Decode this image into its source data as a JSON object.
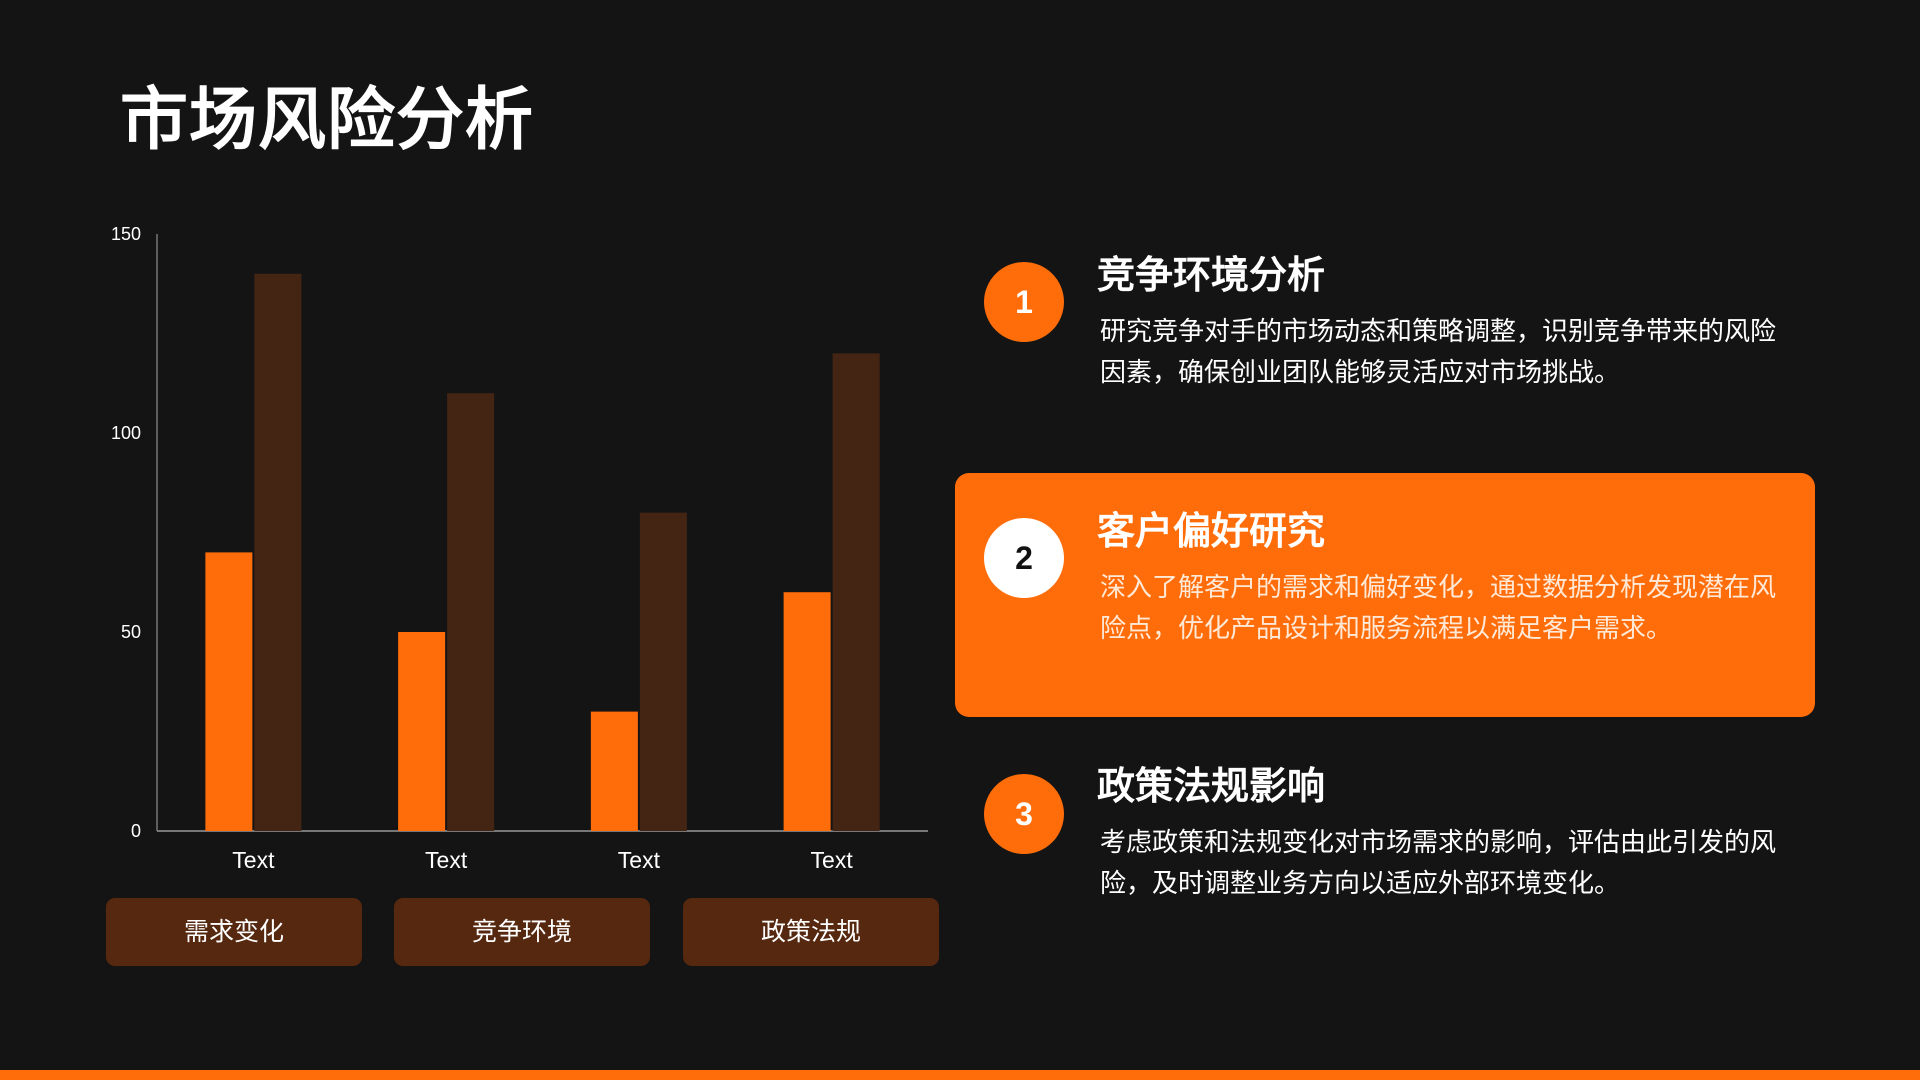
{
  "slide": {
    "title": "市场风险分析"
  },
  "chart_data": {
    "type": "bar",
    "categories": [
      "Text",
      "Text",
      "Text",
      "Text"
    ],
    "series": [
      {
        "values": [
          70,
          50,
          30,
          60
        ],
        "color": "#ff6d0a"
      },
      {
        "values": [
          140,
          110,
          80,
          120
        ],
        "color": "#442514"
      }
    ],
    "ylim": [
      0,
      150
    ],
    "yticks": [
      0,
      50,
      100,
      150
    ],
    "grid": false,
    "axis_color": "#777777",
    "tick_label_color": "#ffffff"
  },
  "tags": [
    "需求变化",
    "竞争环境",
    "政策法规"
  ],
  "points": [
    {
      "number": "1",
      "title": "竞争环境分析",
      "desc": "研究竞争对手的市场动态和策略调整，识别竞争带来的风险因素，确保创业团队能够灵活应对市场挑战。"
    },
    {
      "number": "2",
      "title": "客户偏好研究",
      "desc": "深入了解客户的需求和偏好变化，通过数据分析发现潜在风险点，优化产品设计和服务流程以满足客户需求。"
    },
    {
      "number": "3",
      "title": "政策法规影响",
      "desc": "考虑政策和法规变化对市场需求的影响，评估由此引发的风险，及时调整业务方向以适应外部环境变化。"
    }
  ],
  "colors": {
    "background": "#141414",
    "accent": "#ff6d0a",
    "tag_background": "#55280f"
  }
}
